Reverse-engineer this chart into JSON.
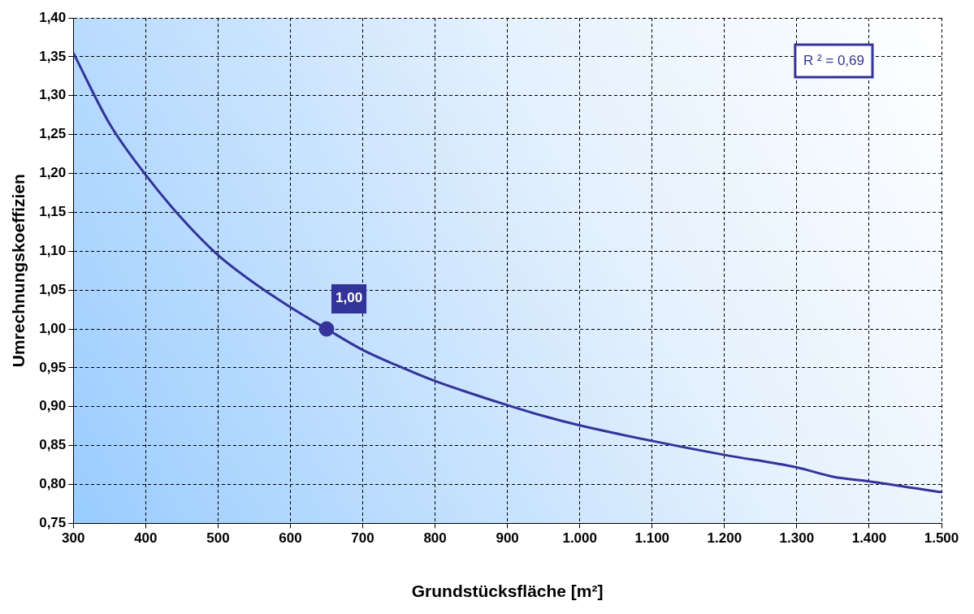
{
  "chart_data": {
    "type": "line",
    "xlabel": "Grundstücksfläche [m²]",
    "ylabel": "Umrechnungskoeffizien",
    "series": [
      {
        "type": "line",
        "color": "#333399",
        "x": [
          300,
          350,
          400,
          450,
          500,
          550,
          600,
          650,
          700,
          750,
          800,
          850,
          900,
          950,
          1000,
          1100,
          1200,
          1300,
          1350,
          1400,
          1500
        ],
        "values": [
          1.355,
          1.264,
          1.198,
          1.142,
          1.095,
          1.059,
          1.028,
          1.0,
          0.973,
          0.952,
          0.933,
          0.917,
          0.902,
          0.888,
          0.876,
          0.856,
          0.838,
          0.822,
          0.81,
          0.804,
          0.79
        ],
        "marker": "none"
      },
      {
        "type": "scatter",
        "color": "#333399",
        "x": [
          650
        ],
        "values": [
          1.0
        ],
        "marker": "circle",
        "value_labels": [
          "1,00"
        ]
      }
    ],
    "xlim": [
      300,
      1500
    ],
    "xticks": [
      300,
      400,
      500,
      600,
      700,
      800,
      900,
      {
        "value": 1000,
        "label": "1.000"
      },
      {
        "value": 1100,
        "label": "1.100"
      },
      {
        "value": 1200,
        "label": "1.200"
      },
      {
        "value": 1300,
        "label": "1.300"
      },
      {
        "value": 1400,
        "label": "1.400"
      },
      {
        "value": 1500,
        "label": "1.500"
      }
    ],
    "ylim": [
      0.75,
      1.4
    ],
    "yticks": [
      {
        "value": 0.75,
        "label": "0,75"
      },
      {
        "value": 0.8,
        "label": "0,80"
      },
      {
        "value": 0.85,
        "label": "0,85"
      },
      {
        "value": 0.9,
        "label": "0,90"
      },
      {
        "value": 0.95,
        "label": "0,95"
      },
      {
        "value": 1.0,
        "label": "1,00"
      },
      {
        "value": 1.05,
        "label": "1,05"
      },
      {
        "value": 1.1,
        "label": "1,10"
      },
      {
        "value": 1.15,
        "label": "1,15"
      },
      {
        "value": 1.2,
        "label": "1,20"
      },
      {
        "value": 1.25,
        "label": "1,25"
      },
      {
        "value": 1.3,
        "label": "1,30"
      },
      {
        "value": 1.35,
        "label": "1,35"
      },
      {
        "value": 1.4,
        "label": "1,40"
      }
    ],
    "grid": true,
    "legend": false,
    "annotations": [
      "R ² = 0,69"
    ]
  }
}
